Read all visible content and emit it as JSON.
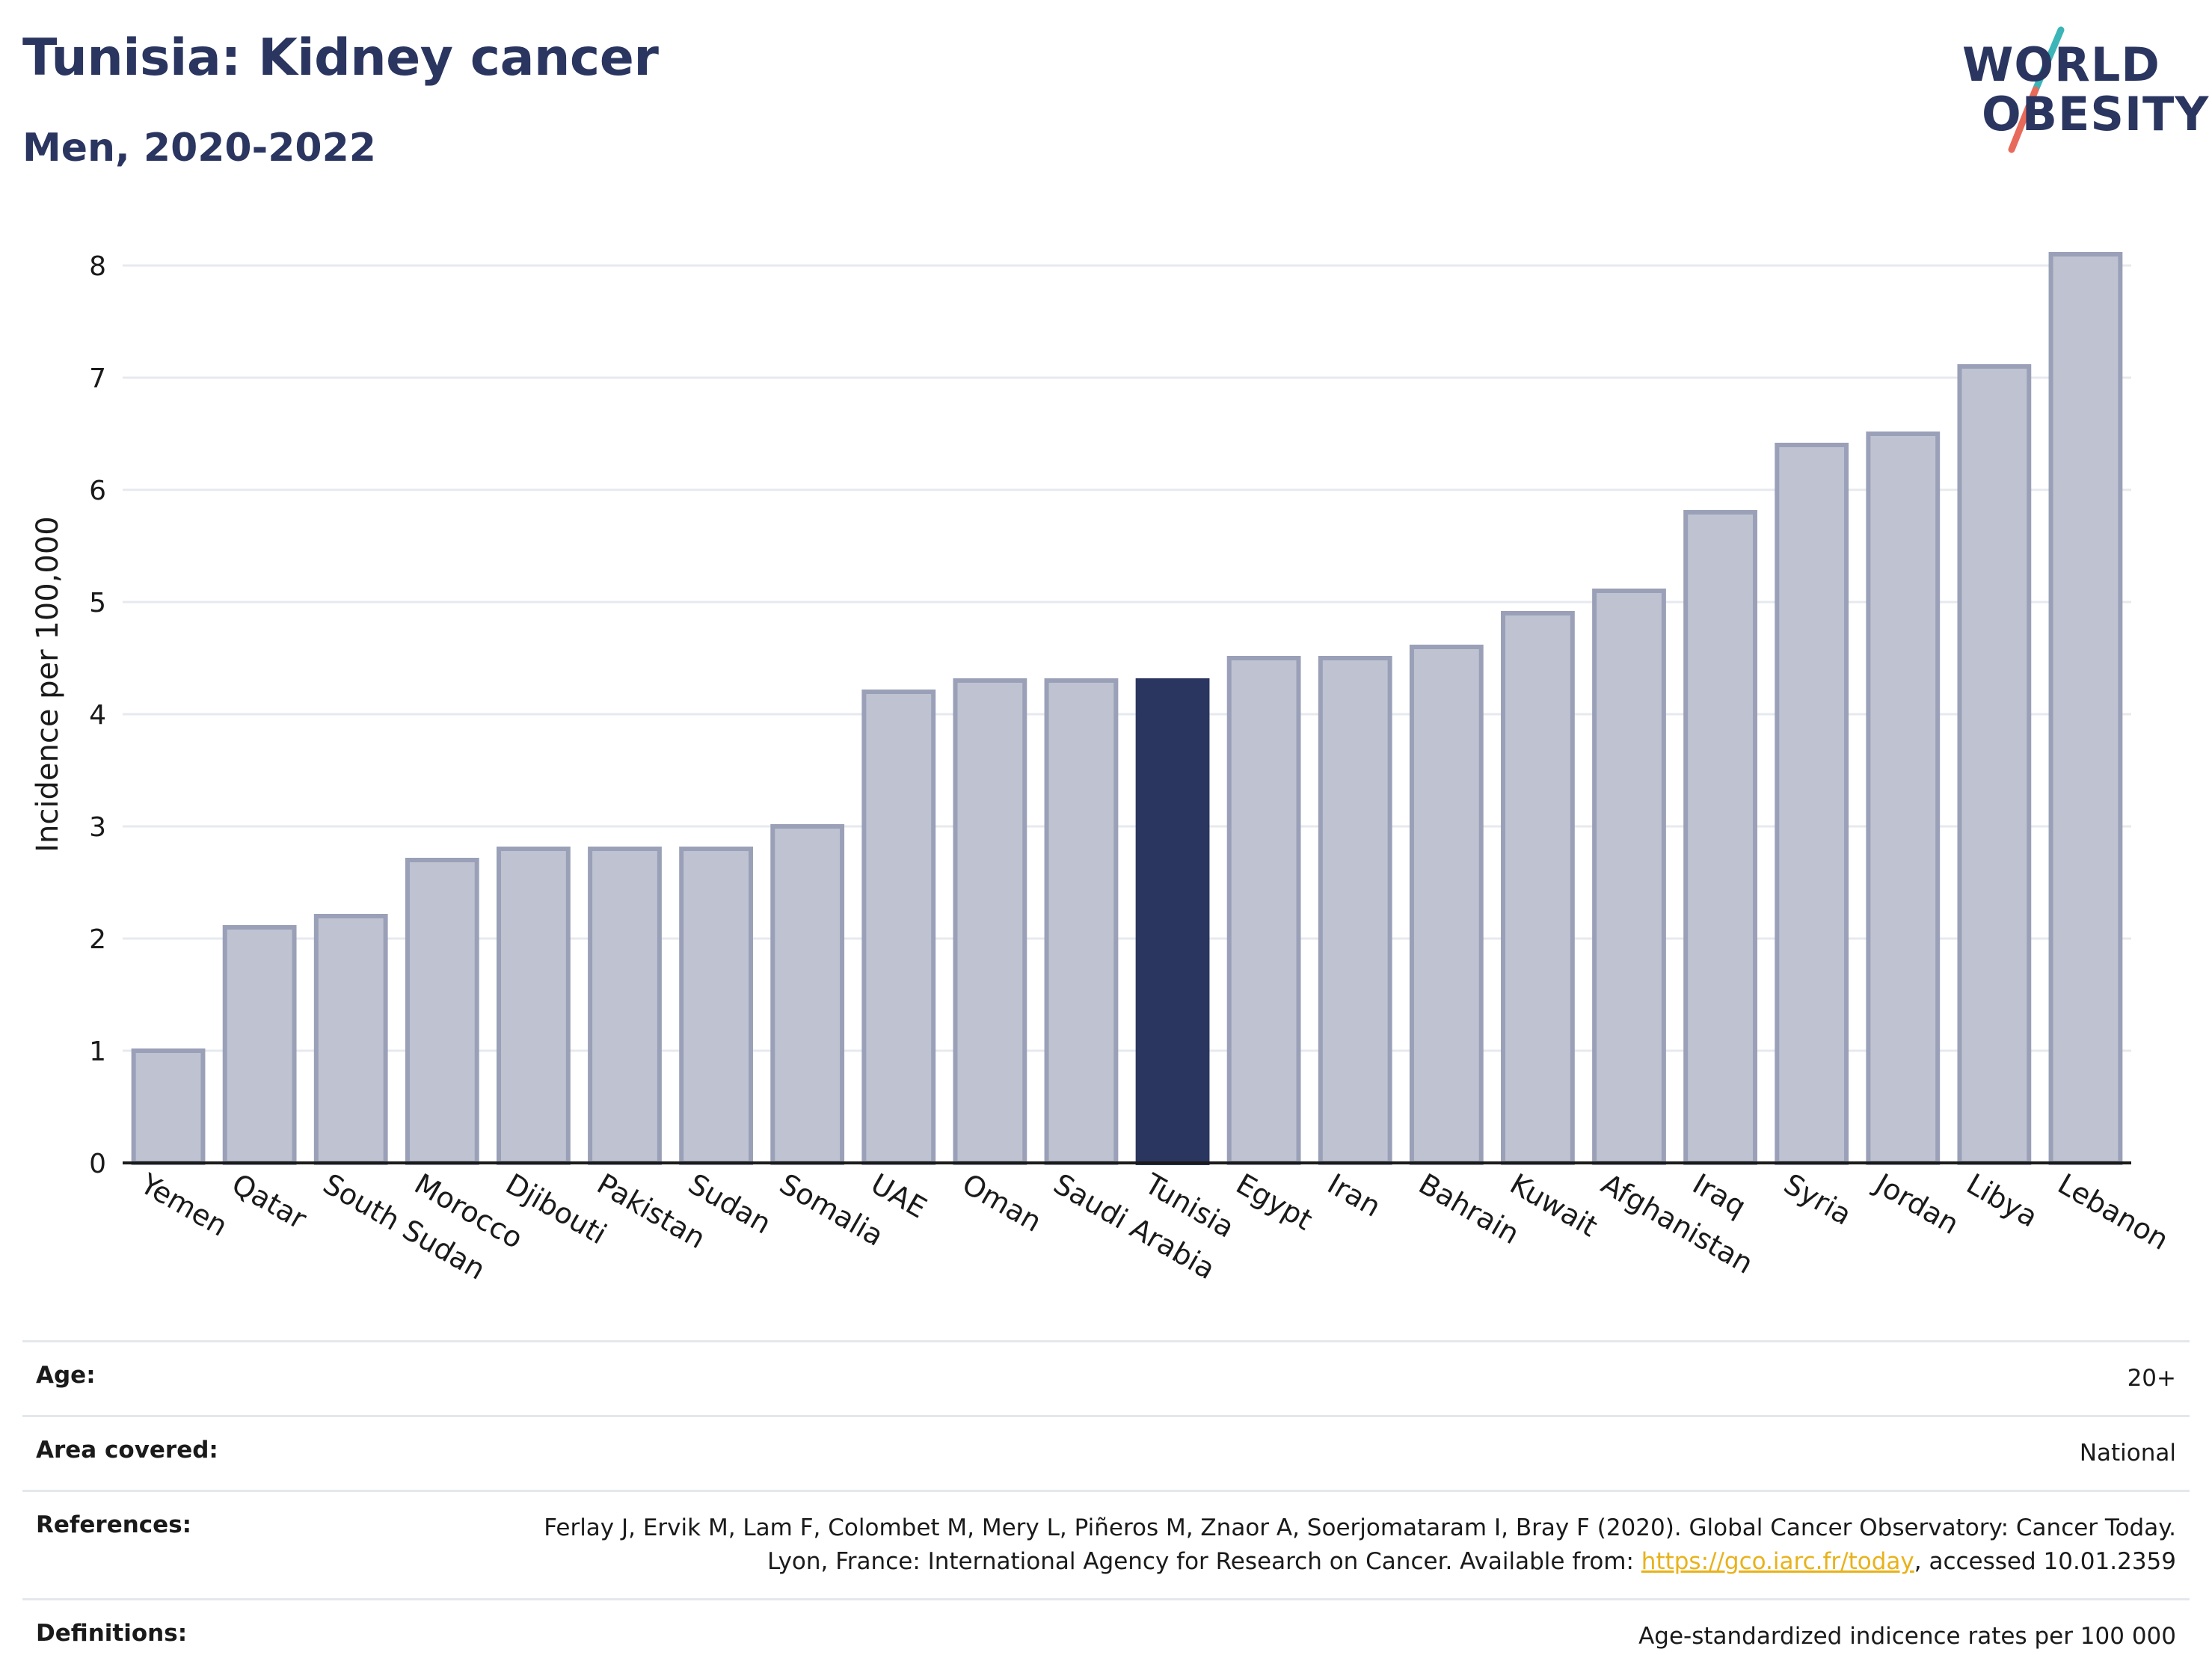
{
  "header": {
    "title": "Tunisia: Kidney cancer",
    "subtitle": "Men, 2020-2022"
  },
  "logo": {
    "line1": "WORLD",
    "line2": "OBESITY",
    "colors": {
      "text": "#2a3560",
      "slash_top": "#3bb5b8",
      "slash_bottom": "#e86a5a"
    }
  },
  "chart_data": {
    "type": "bar",
    "categories": [
      "Yemen",
      "Qatar",
      "South Sudan",
      "Morocco",
      "Djibouti",
      "Pakistan",
      "Sudan",
      "Somalia",
      "UAE",
      "Oman",
      "Saudi Arabia",
      "Tunisia",
      "Egypt",
      "Iran",
      "Bahrain",
      "Kuwait",
      "Afghanistan",
      "Iraq",
      "Syria",
      "Jordan",
      "Libya",
      "Lebanon"
    ],
    "values": [
      1.0,
      2.1,
      2.2,
      2.7,
      2.8,
      2.8,
      2.8,
      3.0,
      4.2,
      4.3,
      4.3,
      4.3,
      4.5,
      4.5,
      4.6,
      4.9,
      5.1,
      5.8,
      6.4,
      6.5,
      7.1,
      8.1
    ],
    "highlight": "Tunisia",
    "ylabel": "Incidence per 100,000",
    "xlabel": "",
    "ylim": [
      0,
      8.3
    ],
    "yticks": [
      0,
      1,
      2,
      3,
      4,
      5,
      6,
      7,
      8
    ],
    "grid": true,
    "colors": {
      "bar": "#bfc3d1",
      "bar_border": "#9aa0b7",
      "highlight": "#2a3560",
      "grid": "#e6e9ee",
      "axis": "#1a1a1a"
    }
  },
  "meta": {
    "age": {
      "label": "Age:",
      "value": "20+"
    },
    "area": {
      "label": "Area covered:",
      "value": "National"
    },
    "references": {
      "label": "References:",
      "text_before": "Ferlay J, Ervik M, Lam F, Colombet M, Mery L, Piñeros M, Znaor A, Soerjomataram I, Bray F (2020). Global Cancer Observatory: Cancer Today. Lyon, France: International Agency for Research on Cancer. Available from: ",
      "link": "https://gco.iarc.fr/today",
      "text_after": ", accessed 10.01.2359"
    },
    "definitions": {
      "label": "Definitions:",
      "value": "Age-standardized indicence rates per 100 000"
    }
  }
}
